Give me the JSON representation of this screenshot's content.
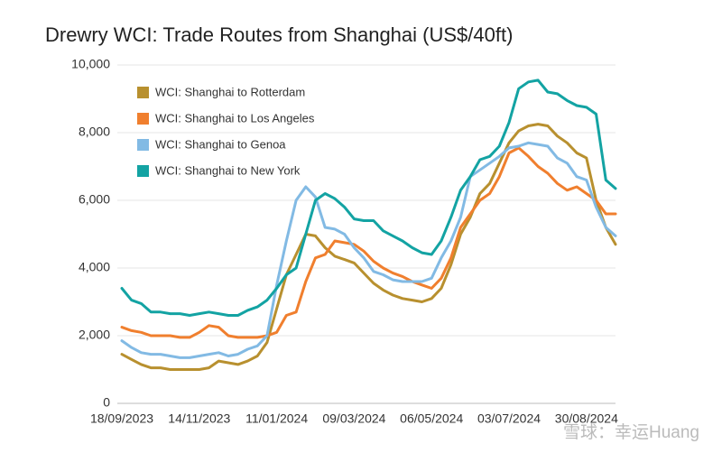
{
  "chart_data": {
    "type": "line",
    "title": "Drewry WCI: Trade Routes from Shanghai (US$/40ft)",
    "categories": [
      "18/09/2023",
      null,
      null,
      null,
      null,
      null,
      null,
      null,
      "14/11/2023",
      null,
      null,
      null,
      null,
      null,
      null,
      null,
      "11/01/2024",
      null,
      null,
      null,
      null,
      null,
      null,
      null,
      "09/03/2024",
      null,
      null,
      null,
      null,
      null,
      null,
      null,
      "06/05/2024",
      null,
      null,
      null,
      null,
      null,
      null,
      null,
      "03/07/2024",
      null,
      null,
      null,
      null,
      null,
      null,
      null,
      "30/08/2024",
      null,
      null,
      null
    ],
    "series": [
      {
        "name": "WCI: Shanghai to Rotterdam",
        "color": "#b8902f",
        "values": [
          1450,
          1300,
          1150,
          1050,
          1050,
          1000,
          1000,
          1000,
          1000,
          1050,
          1250,
          1200,
          1150,
          1250,
          1400,
          1800,
          2800,
          3800,
          4400,
          5000,
          4950,
          4600,
          4350,
          4250,
          4150,
          3850,
          3550,
          3350,
          3200,
          3100,
          3050,
          3000,
          3100,
          3400,
          4100,
          5000,
          5500,
          6200,
          6500,
          7100,
          7700,
          8050,
          8200,
          8250,
          8200,
          7900,
          7700,
          7400,
          7250,
          6000,
          5200,
          4700
        ]
      },
      {
        "name": "WCI: Shanghai to Los Angeles",
        "color": "#f07f2e",
        "values": [
          2250,
          2150,
          2100,
          2000,
          2000,
          2000,
          1950,
          1950,
          2100,
          2300,
          2250,
          2000,
          1950,
          1950,
          1950,
          2000,
          2100,
          2600,
          2700,
          3600,
          4300,
          4400,
          4800,
          4750,
          4700,
          4500,
          4200,
          4000,
          3850,
          3750,
          3600,
          3500,
          3400,
          3700,
          4300,
          5200,
          5600,
          6000,
          6200,
          6700,
          7400,
          7550,
          7300,
          7000,
          6800,
          6500,
          6300,
          6400,
          6200,
          6000,
          5600,
          5600
        ]
      },
      {
        "name": "WCI: Shanghai to Genoa",
        "color": "#82bae4",
        "values": [
          1850,
          1650,
          1500,
          1450,
          1450,
          1400,
          1350,
          1350,
          1400,
          1450,
          1500,
          1400,
          1450,
          1600,
          1700,
          2000,
          3500,
          4800,
          6000,
          6400,
          6100,
          5200,
          5150,
          5000,
          4600,
          4300,
          3900,
          3800,
          3650,
          3600,
          3600,
          3600,
          3700,
          4300,
          4800,
          5500,
          6700,
          6900,
          7100,
          7300,
          7550,
          7600,
          7700,
          7650,
          7600,
          7250,
          7100,
          6700,
          6600,
          5800,
          5200,
          4950
        ]
      },
      {
        "name": "WCI: Shanghai to New York",
        "color": "#13a3a3",
        "values": [
          3400,
          3050,
          2950,
          2700,
          2700,
          2650,
          2650,
          2600,
          2650,
          2700,
          2650,
          2600,
          2600,
          2750,
          2850,
          3050,
          3400,
          3800,
          4000,
          5000,
          6000,
          6200,
          6050,
          5800,
          5450,
          5400,
          5400,
          5100,
          4950,
          4800,
          4600,
          4450,
          4400,
          4800,
          5500,
          6300,
          6700,
          7200,
          7300,
          7600,
          8300,
          9300,
          9500,
          9550,
          9200,
          9150,
          8950,
          8800,
          8750,
          8550,
          6600,
          6350
        ]
      }
    ],
    "ylim": [
      0,
      10000
    ],
    "yticks": [
      0,
      {
        "value": 2000,
        "label": "2,000"
      },
      {
        "value": 4000,
        "label": "4,000"
      },
      {
        "value": 6000,
        "label": "6,000"
      },
      {
        "value": 8000,
        "label": "8,000"
      },
      {
        "value": 10000,
        "label": "10,000"
      }
    ],
    "grid": true,
    "legend": "top-left",
    "watermark": "雪球：幸运Huang"
  }
}
